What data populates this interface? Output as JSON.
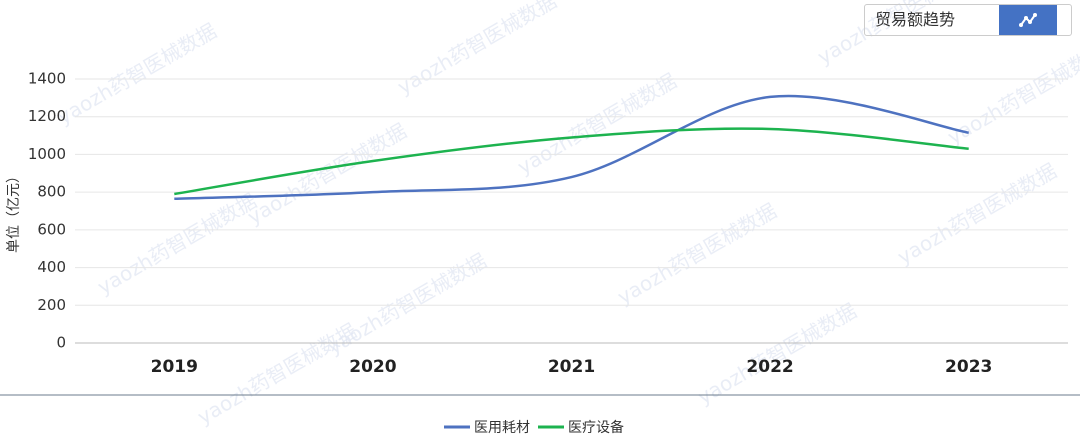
{
  "chart_data": {
    "type": "line",
    "y_label": "单位（亿元）",
    "watermark": "yaozh药智医械数据",
    "toggle_label": "贸易额趋势",
    "categories": [
      "2019",
      "2020",
      "2021",
      "2022",
      "2023"
    ],
    "series": [
      {
        "name": "医用耗材",
        "color": "#4e72c0",
        "values": [
          765,
          800,
          880,
          1305,
          1115
        ]
      },
      {
        "name": "医疗设备",
        "color": "#1db34f",
        "values": [
          790,
          965,
          1090,
          1135,
          1030
        ]
      }
    ],
    "ylim": [
      0,
      1400
    ],
    "yticks": [
      0,
      200,
      400,
      600,
      800,
      1000,
      1200,
      1400
    ],
    "grid": true,
    "smooth": true
  }
}
